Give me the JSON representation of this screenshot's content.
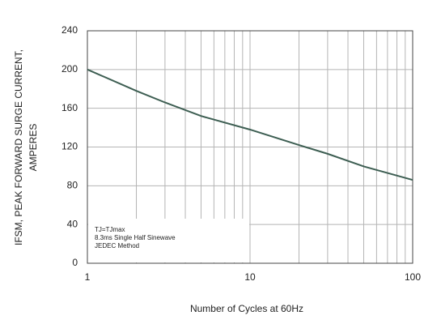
{
  "chart_data": {
    "type": "line",
    "x_label": "Number of Cycles at 60Hz",
    "y_label_lines": [
      "IFSM, PEAK FORWARD SURGE CURRENT,",
      "AMPERES"
    ],
    "annotation_lines": [
      "TJ=TJmax",
      "8.3ms Single Half  Sinewave",
      "JEDEC Method"
    ],
    "x_log": true,
    "grid": true,
    "xlim": [
      1,
      100
    ],
    "xticks": [
      1,
      10,
      100
    ],
    "x_minor_grid": [
      2,
      3,
      4,
      5,
      6,
      7,
      8,
      9,
      20,
      30,
      40,
      50,
      60,
      70,
      80,
      90
    ],
    "ylim": [
      0,
      240
    ],
    "yticks": [
      0,
      40,
      80,
      120,
      160,
      200,
      240
    ],
    "series": [
      {
        "color": "#3d5e52",
        "x": [
          1,
          2,
          3,
          5,
          10,
          20,
          30,
          50,
          100
        ],
        "values": [
          200,
          178,
          166,
          152,
          138,
          122,
          113,
          100,
          86
        ]
      }
    ]
  }
}
